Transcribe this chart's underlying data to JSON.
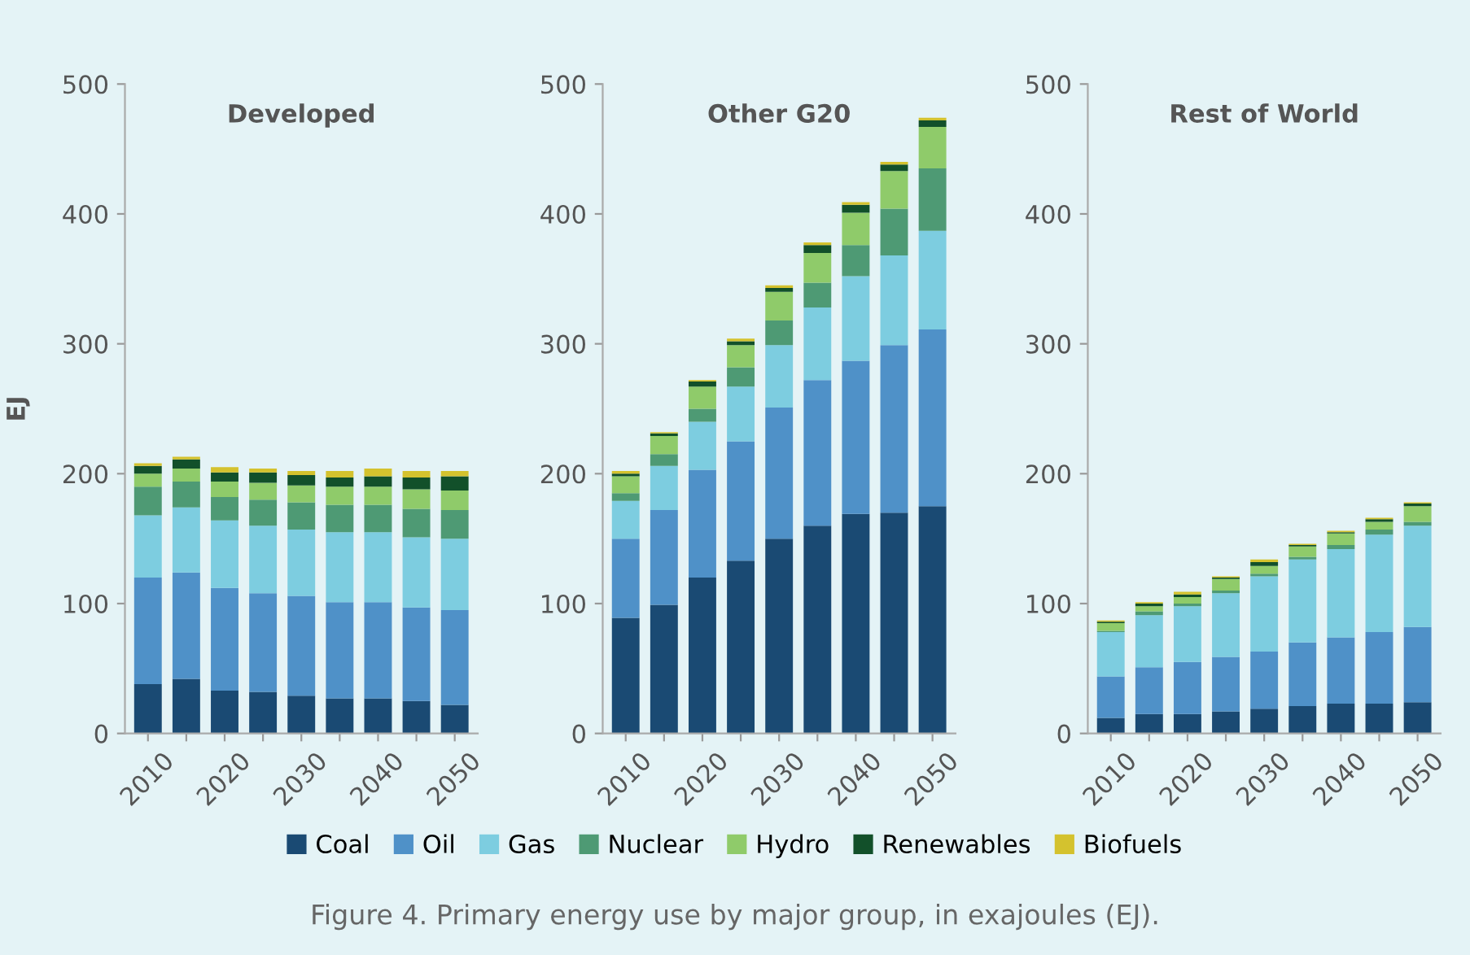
{
  "chart_data": [
    {
      "type": "bar",
      "title": "Developed",
      "ylabel": "EJ",
      "stacked": true,
      "grid": false,
      "legend": "bottom",
      "categories": [
        "2010",
        null,
        "2020",
        null,
        "2030",
        null,
        "2040",
        null,
        "2050"
      ],
      "ylim": [
        0,
        500
      ],
      "yticks": [
        0,
        100,
        200,
        300,
        400,
        500
      ],
      "series": [
        {
          "name": "Coal",
          "color": "#1a4a73",
          "values": [
            38,
            42,
            33,
            32,
            29,
            27,
            27,
            25,
            22
          ]
        },
        {
          "name": "Oil",
          "color": "#4f91c8",
          "values": [
            82,
            82,
            79,
            76,
            77,
            74,
            74,
            72,
            73
          ]
        },
        {
          "name": "Gas",
          "color": "#7dcde0",
          "values": [
            48,
            50,
            52,
            52,
            51,
            54,
            54,
            54,
            55
          ]
        },
        {
          "name": "Nuclear",
          "color": "#4e9a74",
          "values": [
            22,
            20,
            18,
            20,
            21,
            21,
            21,
            22,
            22
          ]
        },
        {
          "name": "Hydro",
          "color": "#8fcb6a",
          "values": [
            10,
            10,
            12,
            13,
            13,
            14,
            14,
            15,
            15
          ]
        },
        {
          "name": "Renewables",
          "color": "#12502a",
          "values": [
            6,
            7,
            7,
            8,
            8,
            7,
            8,
            9,
            11
          ]
        },
        {
          "name": "Biofuels",
          "color": "#d4c22e",
          "values": [
            2,
            2,
            4,
            3,
            3,
            5,
            6,
            5,
            4
          ]
        }
      ],
      "annotations": [
        "Figure 4. Primary energy use by major group, in exajoules (EJ)."
      ]
    },
    {
      "type": "bar",
      "title": "Other G20",
      "stacked": true,
      "grid": false,
      "categories": [
        "2010",
        null,
        "2020",
        null,
        "2030",
        null,
        "2040",
        null,
        "2050"
      ],
      "ylim": [
        0,
        500
      ],
      "yticks": [
        0,
        100,
        200,
        300,
        400,
        500
      ],
      "series": [
        {
          "color": "#1a4a73",
          "values": [
            89,
            99,
            120,
            133,
            150,
            160,
            169,
            170,
            175
          ]
        },
        {
          "color": "#4f91c8",
          "values": [
            61,
            73,
            83,
            92,
            101,
            112,
            118,
            129,
            136
          ]
        },
        {
          "color": "#7dcde0",
          "values": [
            29,
            34,
            37,
            42,
            48,
            56,
            65,
            69,
            76
          ]
        },
        {
          "color": "#4e9a74",
          "values": [
            6,
            9,
            10,
            15,
            19,
            19,
            24,
            36,
            48
          ]
        },
        {
          "color": "#8fcb6a",
          "values": [
            13,
            14,
            17,
            17,
            22,
            23,
            25,
            29,
            32
          ]
        },
        {
          "color": "#12502a",
          "values": [
            2,
            2,
            4,
            3,
            3,
            6,
            6,
            5,
            5
          ]
        },
        {
          "color": "#d4c22e",
          "values": [
            2,
            1,
            1,
            2,
            2,
            2,
            2,
            2,
            2
          ]
        }
      ]
    },
    {
      "type": "bar",
      "title": "Rest of World",
      "stacked": true,
      "grid": false,
      "categories": [
        "2010",
        null,
        "2020",
        null,
        "2030",
        null,
        "2040",
        null,
        "2050"
      ],
      "ylim": [
        0,
        500
      ],
      "yticks": [
        0,
        100,
        200,
        300,
        400,
        500
      ],
      "series": [
        {
          "color": "#1a4a73",
          "values": [
            12,
            15,
            15,
            17,
            19,
            21,
            23,
            23,
            24
          ]
        },
        {
          "color": "#4f91c8",
          "values": [
            32,
            36,
            40,
            42,
            44,
            49,
            51,
            55,
            58
          ]
        },
        {
          "color": "#7dcde0",
          "values": [
            34,
            40,
            43,
            49,
            58,
            64,
            68,
            75,
            78
          ]
        },
        {
          "color": "#4e9a74",
          "values": [
            1,
            3,
            2,
            2,
            2,
            2,
            3,
            4,
            3
          ]
        },
        {
          "color": "#8fcb6a",
          "values": [
            6,
            4,
            5,
            9,
            6,
            8,
            9,
            6,
            12
          ]
        },
        {
          "color": "#12502a",
          "values": [
            1,
            2,
            2,
            1,
            3,
            1,
            1,
            2,
            2
          ]
        },
        {
          "color": "#d4c22e",
          "values": [
            1,
            1,
            2,
            1,
            2,
            1,
            1,
            1,
            1
          ]
        }
      ]
    }
  ]
}
